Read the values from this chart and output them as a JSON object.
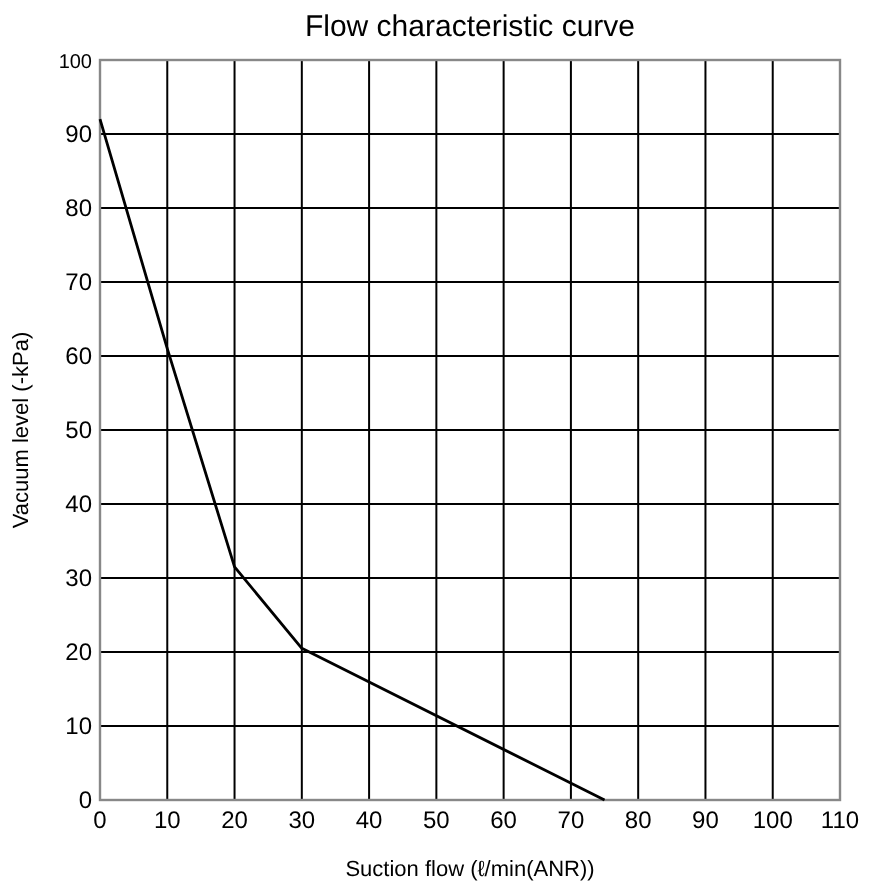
{
  "chart_data": {
    "type": "line",
    "title": "Flow characteristic curve",
    "xlabel": "Suction flow (ℓ/min(ANR))",
    "ylabel": "Vacuum level (-kPa)",
    "x": [
      0,
      10,
      20,
      30,
      75
    ],
    "series": [
      {
        "color": "#000000",
        "values": [
          92,
          61,
          31.5,
          20.5,
          0
        ]
      }
    ],
    "xlim": [
      0,
      110
    ],
    "xticks": [
      0,
      10,
      20,
      30,
      40,
      50,
      60,
      70,
      80,
      90,
      100,
      110
    ],
    "ylim": [
      0,
      100
    ],
    "yticks": [
      0,
      10,
      20,
      30,
      40,
      50,
      60,
      70,
      80,
      90,
      100
    ],
    "grid": true,
    "marker": "none",
    "line_style": "solid"
  }
}
